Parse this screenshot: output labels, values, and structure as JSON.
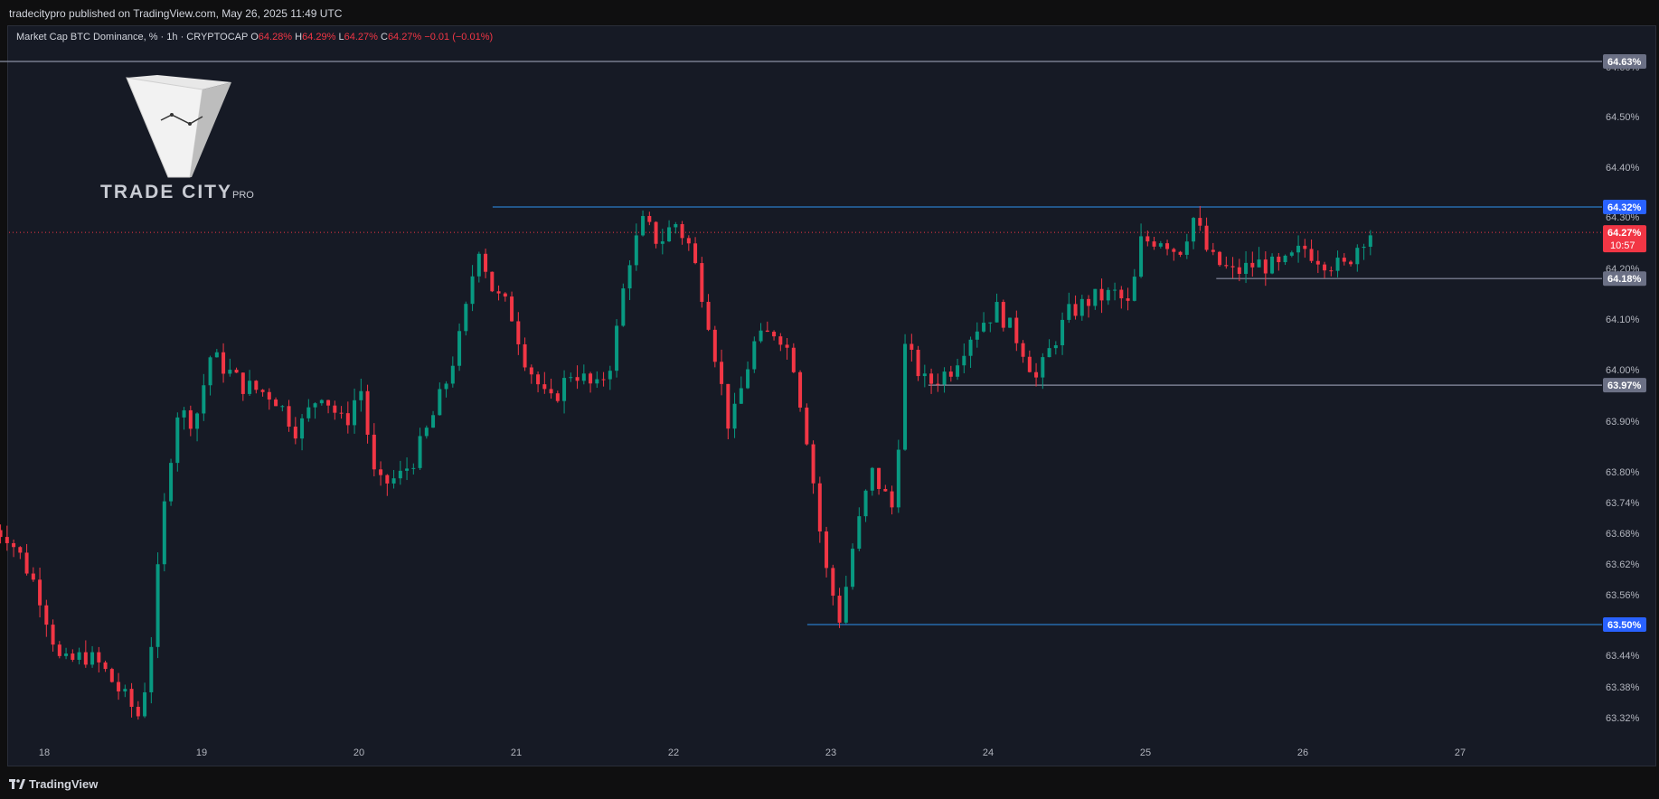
{
  "header": {
    "published": "tradecitypro published on TradingView.com, May 26, 2025 11:49 UTC"
  },
  "legend": {
    "symbol": "Market Cap BTC Dominance, % · 1h · CRYPTOCAP",
    "o_label": "O",
    "o_value": "64.28%",
    "h_label": "H",
    "h_value": "64.29%",
    "l_label": "L",
    "l_value": "64.27%",
    "c_label": "C",
    "c_value": "64.27%",
    "change": "−0.01 (−0.01%)"
  },
  "watermark": {
    "brand": "TRADE CITY",
    "sub": "PRO"
  },
  "footer": {
    "brand": "TradingView"
  },
  "colors": {
    "background": "#161a25",
    "up": "#089981",
    "down": "#f23645",
    "level_blue": "#2b7ac8",
    "level_grey": "#8b90a3",
    "text": "#d1d4dc"
  },
  "chart_data": {
    "type": "candlestick",
    "title": "Market Cap BTC Dominance, %",
    "interval": "1h",
    "ylim": [
      63.3,
      64.65
    ],
    "y_ticks": [
      "64.60%",
      "64.50%",
      "64.40%",
      "64.30%",
      "64.20%",
      "64.10%",
      "64.00%",
      "63.90%",
      "63.80%",
      "63.74%",
      "63.68%",
      "63.62%",
      "63.56%",
      "63.44%",
      "63.38%",
      "63.32%"
    ],
    "x_ticks": [
      "18",
      "19",
      "20",
      "21",
      "22",
      "23",
      "24",
      "25",
      "26",
      "27"
    ],
    "current_price": {
      "label": "64.27%",
      "countdown": "10:57"
    },
    "levels": [
      {
        "value": 64.63,
        "label": "64.63%",
        "style": "grey",
        "from_day": 17.68
      },
      {
        "value": 64.32,
        "label": "64.32%",
        "style": "blue",
        "from_day": 20.85
      },
      {
        "value": 64.18,
        "label": "64.18%",
        "style": "grey",
        "from_day": 25.45
      },
      {
        "value": 63.97,
        "label": "63.97%",
        "style": "grey",
        "from_day": 23.62
      },
      {
        "value": 63.5,
        "label": "63.50%",
        "style": "blue",
        "from_day": 22.85
      }
    ],
    "anchors": [
      {
        "day": 17.68,
        "price": 63.69
      },
      {
        "day": 17.8,
        "price": 63.68
      },
      {
        "day": 17.9,
        "price": 63.63
      },
      {
        "day": 18.0,
        "price": 63.57
      },
      {
        "day": 18.15,
        "price": 63.42
      },
      {
        "day": 18.3,
        "price": 63.44
      },
      {
        "day": 18.4,
        "price": 63.42
      },
      {
        "day": 18.55,
        "price": 63.36
      },
      {
        "day": 18.65,
        "price": 63.32
      },
      {
        "day": 18.72,
        "price": 63.46
      },
      {
        "day": 18.8,
        "price": 63.72
      },
      {
        "day": 18.88,
        "price": 63.92
      },
      {
        "day": 19.0,
        "price": 63.9
      },
      {
        "day": 19.1,
        "price": 64.03
      },
      {
        "day": 19.3,
        "price": 63.97
      },
      {
        "day": 19.5,
        "price": 63.95
      },
      {
        "day": 19.65,
        "price": 63.88
      },
      {
        "day": 19.8,
        "price": 63.96
      },
      {
        "day": 19.95,
        "price": 63.89
      },
      {
        "day": 20.05,
        "price": 63.97
      },
      {
        "day": 20.15,
        "price": 63.77
      },
      {
        "day": 20.3,
        "price": 63.79
      },
      {
        "day": 20.4,
        "price": 63.83
      },
      {
        "day": 20.5,
        "price": 63.9
      },
      {
        "day": 20.6,
        "price": 63.98
      },
      {
        "day": 20.7,
        "price": 64.08
      },
      {
        "day": 20.8,
        "price": 64.25
      },
      {
        "day": 20.9,
        "price": 64.15
      },
      {
        "day": 21.0,
        "price": 64.12
      },
      {
        "day": 21.1,
        "price": 64.02
      },
      {
        "day": 21.25,
        "price": 63.93
      },
      {
        "day": 21.4,
        "price": 64.0
      },
      {
        "day": 21.55,
        "price": 63.96
      },
      {
        "day": 21.65,
        "price": 64.02
      },
      {
        "day": 21.75,
        "price": 64.21
      },
      {
        "day": 21.85,
        "price": 64.29
      },
      {
        "day": 21.95,
        "price": 64.25
      },
      {
        "day": 22.05,
        "price": 64.29
      },
      {
        "day": 22.15,
        "price": 64.24
      },
      {
        "day": 22.25,
        "price": 64.12
      },
      {
        "day": 22.4,
        "price": 63.88
      },
      {
        "day": 22.55,
        "price": 64.05
      },
      {
        "day": 22.7,
        "price": 64.08
      },
      {
        "day": 22.8,
        "price": 64.02
      },
      {
        "day": 22.9,
        "price": 63.85
      },
      {
        "day": 23.0,
        "price": 63.62
      },
      {
        "day": 23.1,
        "price": 63.51
      },
      {
        "day": 23.18,
        "price": 63.65
      },
      {
        "day": 23.3,
        "price": 63.8
      },
      {
        "day": 23.45,
        "price": 63.72
      },
      {
        "day": 23.5,
        "price": 64.05
      },
      {
        "day": 23.65,
        "price": 63.97
      },
      {
        "day": 23.8,
        "price": 64.0
      },
      {
        "day": 23.95,
        "price": 64.08
      },
      {
        "day": 24.1,
        "price": 64.12
      },
      {
        "day": 24.25,
        "price": 64.05
      },
      {
        "day": 24.35,
        "price": 63.98
      },
      {
        "day": 24.45,
        "price": 64.05
      },
      {
        "day": 24.55,
        "price": 64.11
      },
      {
        "day": 24.7,
        "price": 64.14
      },
      {
        "day": 24.85,
        "price": 64.15
      },
      {
        "day": 24.95,
        "price": 64.12
      },
      {
        "day": 25.0,
        "price": 64.25
      },
      {
        "day": 25.15,
        "price": 64.26
      },
      {
        "day": 25.25,
        "price": 64.23
      },
      {
        "day": 25.35,
        "price": 64.3
      },
      {
        "day": 25.45,
        "price": 64.22
      },
      {
        "day": 25.6,
        "price": 64.19
      },
      {
        "day": 25.75,
        "price": 64.21
      },
      {
        "day": 25.9,
        "price": 64.2
      },
      {
        "day": 26.05,
        "price": 64.24
      },
      {
        "day": 26.15,
        "price": 64.22
      },
      {
        "day": 26.3,
        "price": 64.2
      },
      {
        "day": 26.4,
        "price": 64.25
      },
      {
        "day": 26.45,
        "price": 64.27
      }
    ]
  }
}
